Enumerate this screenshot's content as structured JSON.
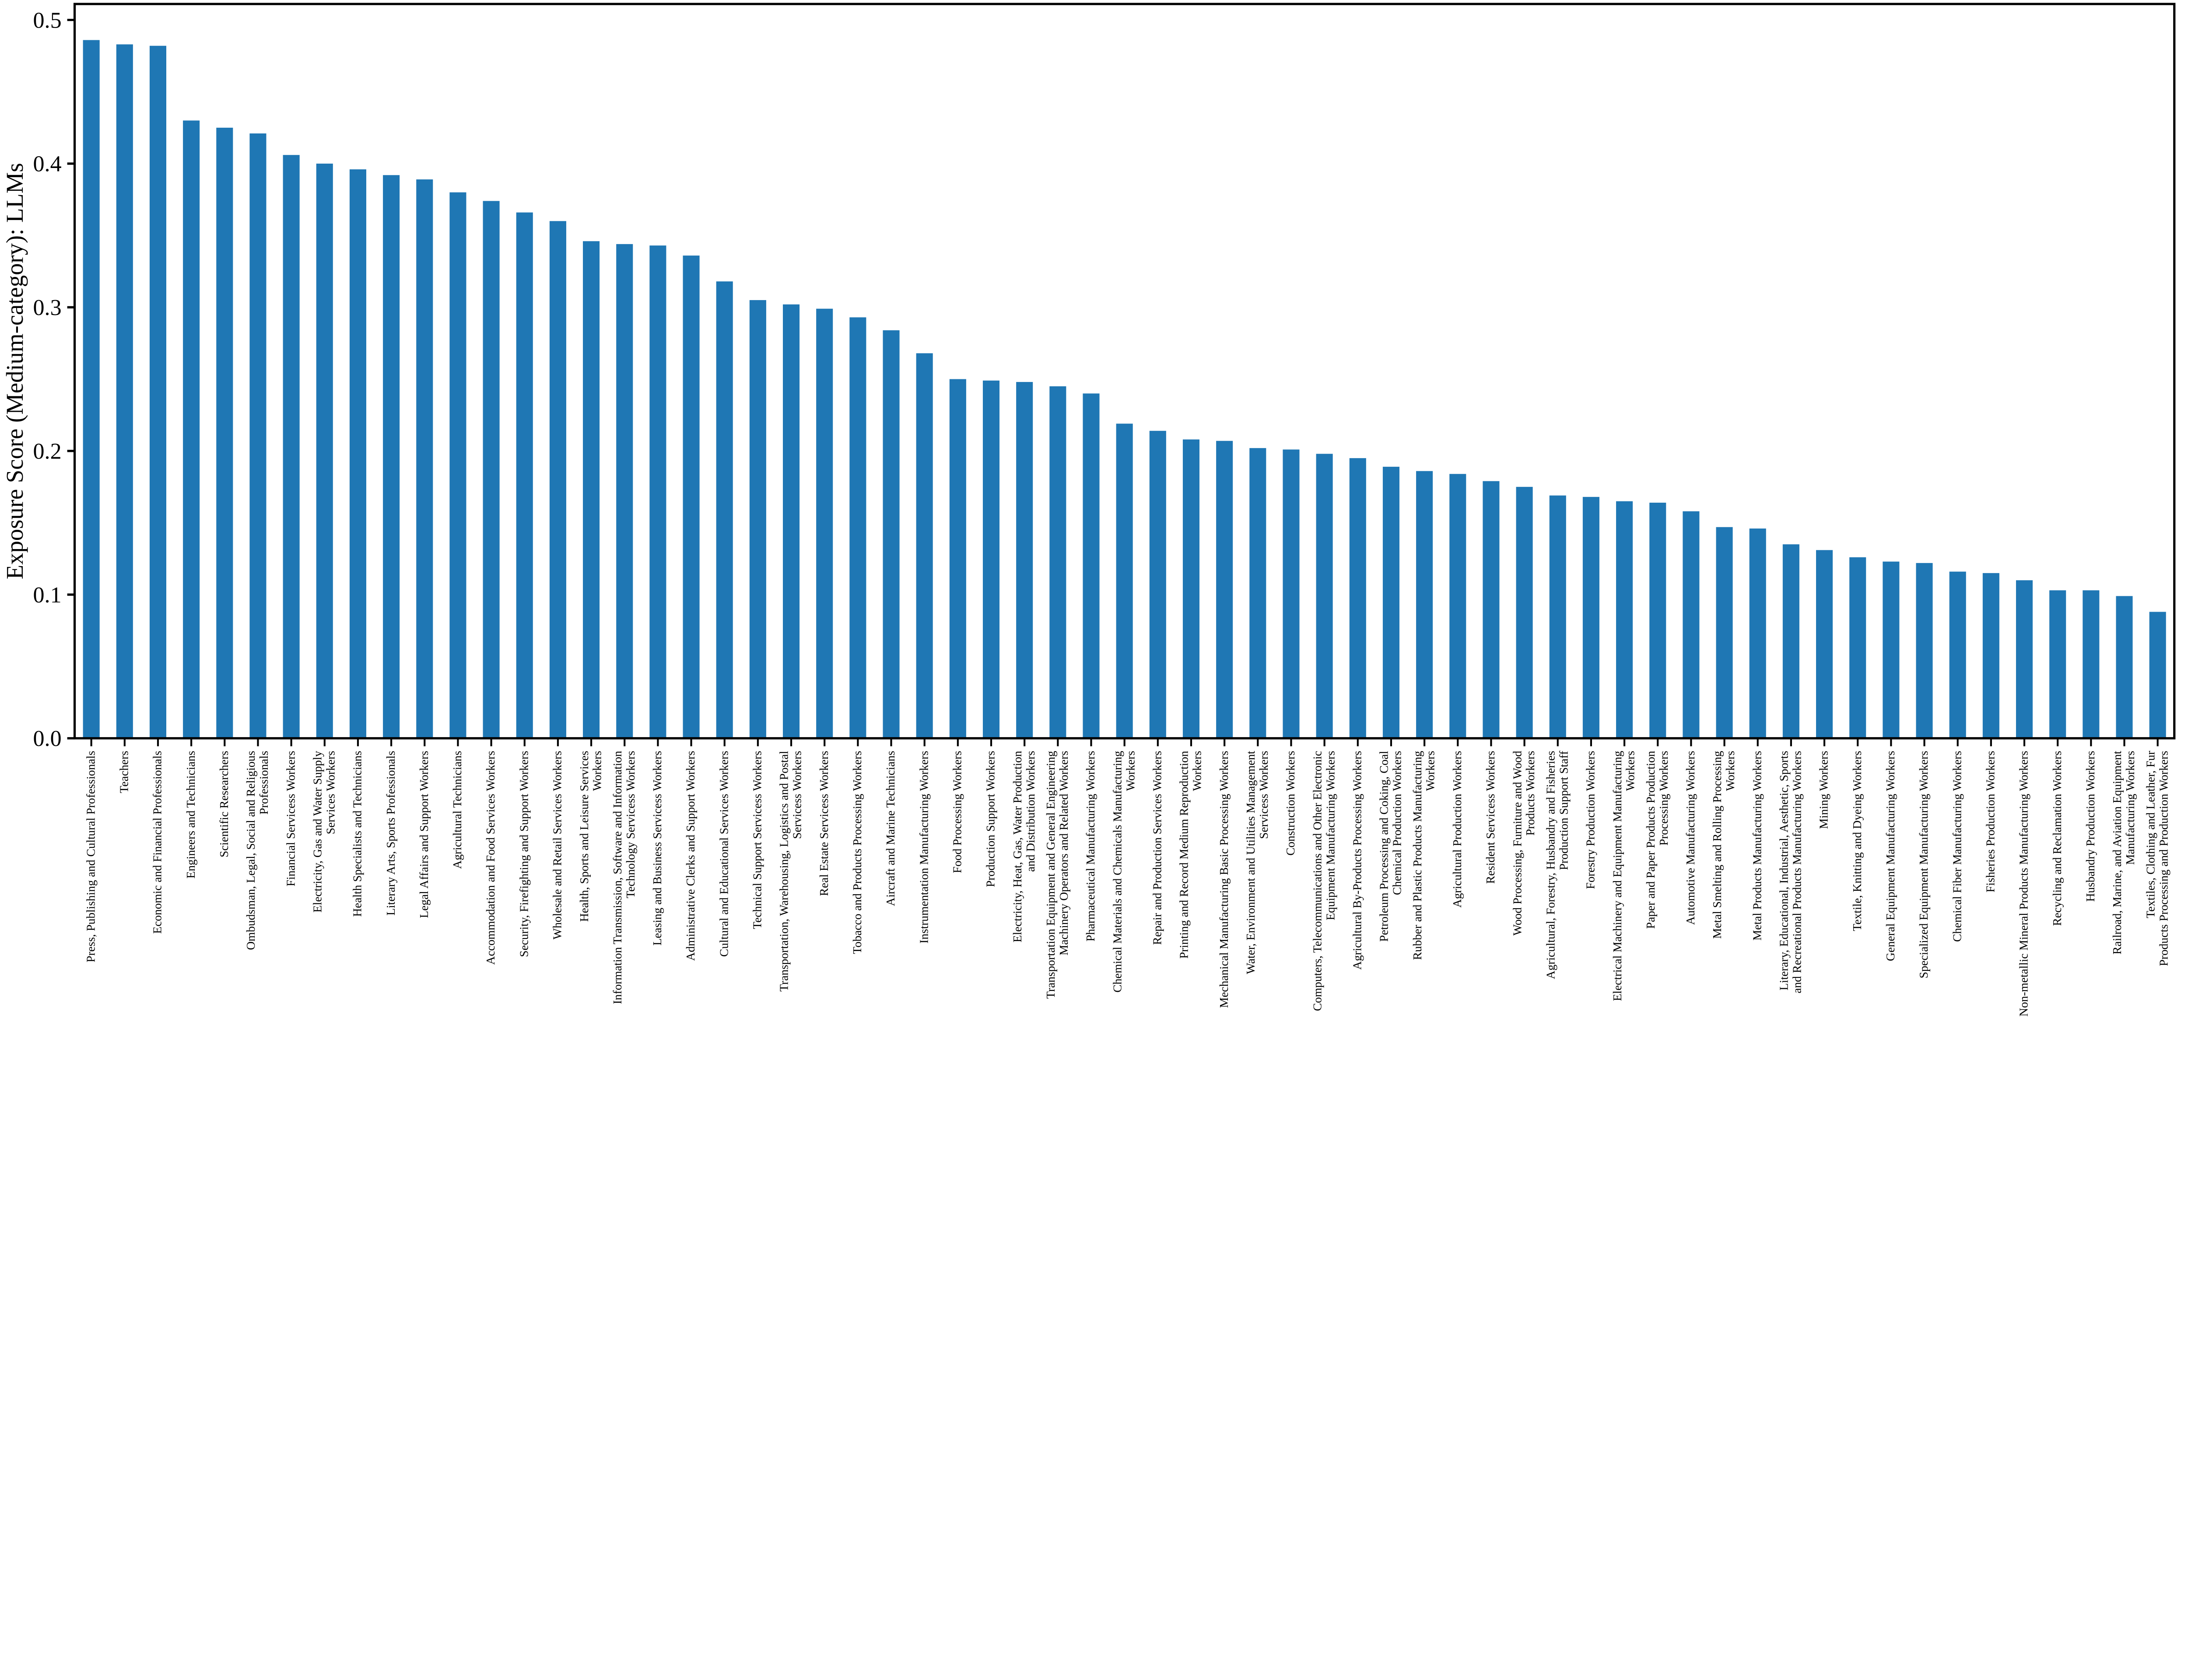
{
  "chart_data": {
    "type": "bar",
    "title": "",
    "xlabel": "",
    "ylabel": "Exposure Score (Medium-category): LLMs",
    "bar_color": "#1f77b4",
    "axis_color": "#000000",
    "background_color": "#ffffff",
    "grid": false,
    "legend": null,
    "ylim": [
      0.0,
      0.511
    ],
    "yticks": [
      0.0,
      0.1,
      0.2,
      0.3,
      0.4,
      0.5
    ],
    "ytick_labels": [
      "0.0",
      "0.1",
      "0.2",
      "0.3",
      "0.4",
      "0.5"
    ],
    "categories": [
      "Press, Publishing and Cultural Professionals",
      "Teachers",
      "Economic and Financial Professionals",
      "Engineers and Technicians",
      "Scientific Researchers",
      "Ombudsman, Legal, Social and Religious\nProfessionals",
      "Financial Servicess Workers",
      "Electricity, Gas and Water Supply\nServices Workers",
      "Health Specialists and Technicians",
      "Literary Arts, Sports Professionals",
      "Legal Affairs and Support Workers",
      "Agricultural Technicians",
      "Accommodation and Food Services Workers",
      "Security, Firefighting and Support Workers",
      "Wholesale and Retail Services Workers",
      "Health, Sports and Leisure Services\nWorkers",
      "Information Transmission, Software and Information\nTechnology Servicess Workers",
      "Leasing and Business Servicess Workers",
      "Administrative Clerks and Support Workers",
      "Cultural and Educational Services Workers",
      "Technical Support Servicess Workers",
      "Transportation, Warehousing, Logistics and Postal\nServicess Workers",
      "Real Estate Servicess Workers",
      "Tobacco and Products Processing Workers",
      "Aircraft and Marine Technicians",
      "Instrumentation Manufacturing Workers",
      "Food Processing Workers",
      "Production Support Workers",
      "Electricity, Heat, Gas, Water Production\nand Distribution Workers",
      "Transportation Equipment and General Engineering\nMachinery Operators and Related Workers",
      "Pharmaceutical Manufacturing Workers",
      "Chemical Materials and Chemicals Manufacturing\nWorkers",
      "Repair and Production Services Workers",
      "Printing and Record Medium Reproduction\nWorkers",
      "Mechanical Manufacturing Basic Processing Workers",
      "Water, Environment and Utilities Management\nServicess Workers",
      "Construction Workers",
      "Computers, Telecommunications and Other Electronic\nEquipment Manufacturing Workers",
      "Agricultural By-Products Processing Workers",
      "Petroleum Processing and Coking, Coal\nChemical Production Workers",
      "Rubber and Plastic Products Manufacturing\nWorkers",
      "Agricultural Production Workers",
      "Resident Servicess Workers",
      "Wood Processing, Furniture and Wood\nProducts Workers",
      "Agricultural, Forestry, Husbandry and Fisheries\nProduction Support Staff",
      "Forestry Production Workers",
      "Electrical Machinery and Equipment Manufacturing\nWorkers",
      "Paper and Paper Products Production\nProcessing Workers",
      "Automotive Manufacturing Workers",
      "Metal Smelting and Rolling Processing\nWorkers",
      "Metal Products Manufacturing Workers",
      "Literary, Educational, Industrial, Aesthetic, Sports\nand Recreational Products Manufacturing Workers",
      "Mining Workers",
      "Textile, Knitting and Dyeing Workers",
      "General Equipment Manufacturing Workers",
      "Specialized Equipment Manufacturing Workers",
      "Chemical Fiber Manufacturing Workers",
      "Fisheries Production Workers",
      "Non-metallic Mineral Products Manufacturing Workers",
      "Recycling and Reclamation Workers",
      "Husbandry Production Workers",
      "Railroad, Marine, and Aviation Equipment\nManufacturing Workers",
      "Textiles, Clothing and Leather, Fur\nProducts Processing and Production Workers"
    ],
    "values": [
      0.486,
      0.483,
      0.482,
      0.43,
      0.425,
      0.421,
      0.406,
      0.4,
      0.396,
      0.392,
      0.389,
      0.38,
      0.374,
      0.366,
      0.36,
      0.346,
      0.344,
      0.343,
      0.336,
      0.318,
      0.305,
      0.302,
      0.299,
      0.293,
      0.284,
      0.268,
      0.25,
      0.249,
      0.248,
      0.245,
      0.24,
      0.219,
      0.214,
      0.208,
      0.207,
      0.202,
      0.201,
      0.198,
      0.195,
      0.189,
      0.186,
      0.184,
      0.179,
      0.175,
      0.169,
      0.168,
      0.165,
      0.164,
      0.158,
      0.147,
      0.146,
      0.135,
      0.131,
      0.126,
      0.123,
      0.122,
      0.116,
      0.115,
      0.11,
      0.103,
      0.103,
      0.099,
      0.088
    ]
  }
}
